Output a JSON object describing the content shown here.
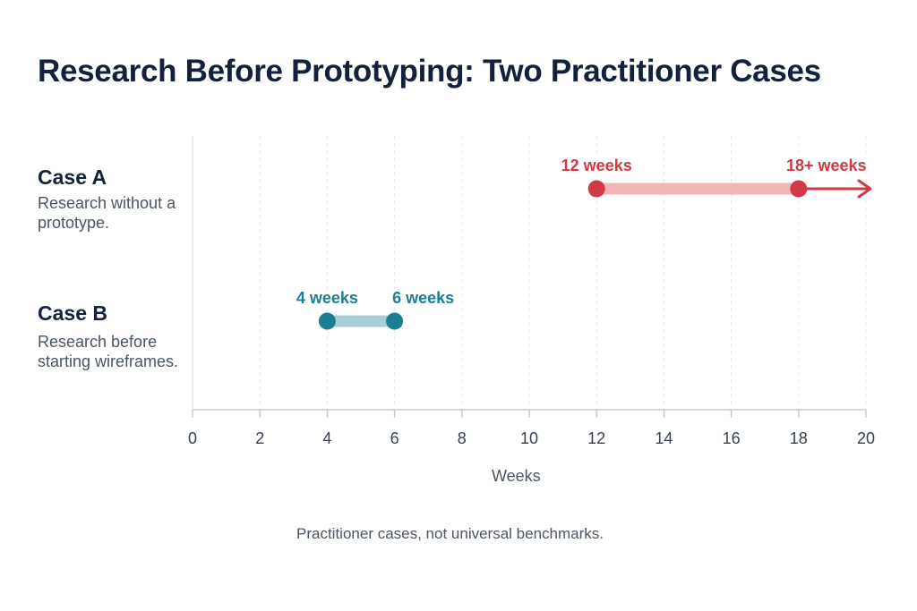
{
  "chart_data": {
    "type": "range",
    "title": "Research Before Prototyping: Two Practitioner Cases",
    "xlabel": "Weeks",
    "xlim": [
      0,
      20
    ],
    "xticks": [
      0,
      2,
      4,
      6,
      8,
      10,
      12,
      14,
      16,
      18,
      20
    ],
    "grid": "vertical dashed",
    "series": [
      {
        "name": "Case A",
        "description": "Research without a prototype.",
        "start": 12,
        "end": 18,
        "start_label": "12 weeks",
        "end_label": "18+ weeks",
        "open_ended": true,
        "color": "#cf3a45",
        "bar_color": "#f0b5b7"
      },
      {
        "name": "Case B",
        "description": "Research before starting wireframes.",
        "start": 4,
        "end": 6,
        "start_label": "4 weeks",
        "end_label": "6 weeks",
        "open_ended": false,
        "color": "#1a7f93",
        "bar_color": "#a9cfd6"
      }
    ],
    "footnote": "Practitioner cases, not universal benchmarks."
  }
}
